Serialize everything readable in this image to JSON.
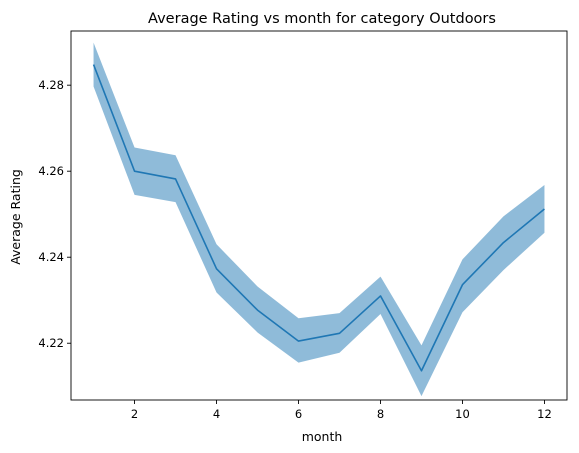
{
  "chart_data": {
    "type": "line",
    "title": "Average Rating vs month for category Outdoors",
    "xlabel": "month",
    "ylabel": "Average Rating",
    "xlim": [
      0.45,
      12.55
    ],
    "ylim": [
      4.2068,
      4.2926
    ],
    "xticks": [
      2,
      4,
      6,
      8,
      10,
      12
    ],
    "xtick_labels": [
      "2",
      "4",
      "6",
      "8",
      "10",
      "12"
    ],
    "yticks": [
      4.22,
      4.24,
      4.26,
      4.28
    ],
    "ytick_labels": [
      "4.22",
      "4.24",
      "4.26",
      "4.28"
    ],
    "grid": false,
    "legend": "none",
    "line_color": "#1f77b4",
    "band_color": "#1f77b4",
    "series": [
      {
        "x": [
          1,
          2,
          3,
          4,
          5,
          6,
          7,
          8,
          9,
          10,
          11,
          12
        ],
        "values": [
          4.2848,
          4.26,
          4.2582,
          4.2373,
          4.2277,
          4.2205,
          4.2223,
          4.231,
          4.2136,
          4.2336,
          4.2434,
          4.2512
        ],
        "upper": [
          4.2899,
          4.2655,
          4.2637,
          4.243,
          4.2332,
          4.2258,
          4.227,
          4.2355,
          4.2195,
          4.2395,
          4.2495,
          4.2568
        ],
        "lower": [
          4.2797,
          4.2545,
          4.2528,
          4.2318,
          4.2225,
          4.2155,
          4.2178,
          4.2268,
          4.2077,
          4.2272,
          4.237,
          4.2457
        ]
      }
    ]
  }
}
